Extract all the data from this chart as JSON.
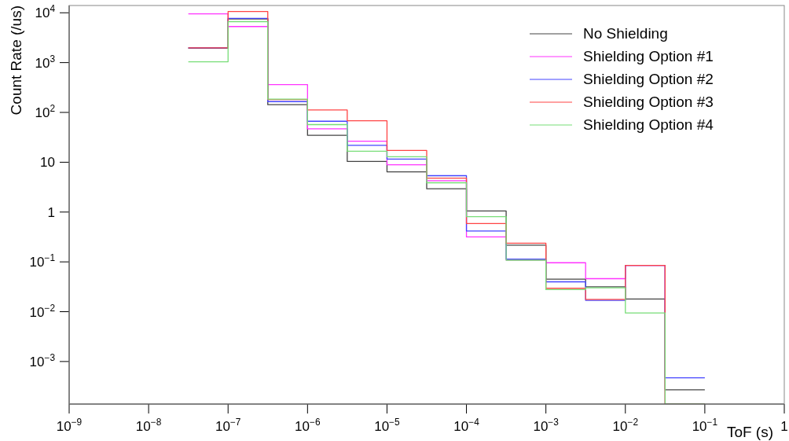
{
  "chart_data": {
    "type": "histogram",
    "xlabel": "ToF (s)",
    "ylabel": "Count Rate (/us)",
    "log": "xy",
    "legend": "top right",
    "grid": false,
    "bins": [
      3.16e-08,
      1e-07,
      3.16e-07,
      1e-06,
      3.16e-06,
      1e-05,
      3.16e-05,
      0.0001,
      0.000316,
      0.001,
      0.00316,
      0.01,
      0.0316,
      0.1
    ],
    "xlim": [
      1e-09,
      1
    ],
    "ylim": [
      0.00014,
      14000
    ],
    "xticks": [
      {
        "value": 1e-09,
        "label": "10$^{−9}$"
      },
      {
        "value": 1e-08,
        "label": "10$^{−8}$"
      },
      {
        "value": 1e-07,
        "label": "10$^{−7}$"
      },
      {
        "value": 1e-06,
        "label": "10$^{−6}$"
      },
      {
        "value": 1e-05,
        "label": "10$^{−5}$"
      },
      {
        "value": 0.0001,
        "label": "10$^{−4}$"
      },
      {
        "value": 0.001,
        "label": "10$^{−3}$"
      },
      {
        "value": 0.01,
        "label": "10$^{−2}$"
      },
      {
        "value": 0.1,
        "label": "10$^{−1}$"
      },
      1
    ],
    "yticks": [
      {
        "value": 0.001,
        "label": "10$^{−3}$"
      },
      {
        "value": 0.01,
        "label": "10$^{−2}$"
      },
      {
        "value": 0.1,
        "label": "10$^{−1}$"
      },
      1,
      10,
      {
        "value": 100,
        "label": "10$^{2}$"
      },
      {
        "value": 1000,
        "label": "10$^{3}$"
      },
      {
        "value": 10000,
        "label": "10$^{4}$"
      }
    ],
    "series": [
      {
        "name": "No Shielding",
        "color": "#444444",
        "values": [
          1950,
          7500,
          143,
          34.7,
          10.4,
          6.4,
          2.93,
          1.05,
          0.217,
          0.045,
          0.0316,
          0.018,
          0.00027
        ]
      },
      {
        "name": "Shielding Option #1",
        "color": "#ff33ff",
        "values": [
          9500,
          5300,
          363,
          46.8,
          26.5,
          8.9,
          4.27,
          0.316,
          0.109,
          0.096,
          0.046,
          0.085,
          null
        ]
      },
      {
        "name": "Shielding Option #2",
        "color": "#4444ff",
        "values": [
          1970,
          7750,
          165,
          66.5,
          21.9,
          11.6,
          5.37,
          0.417,
          0.114,
          0.0398,
          0.0169,
          0.085,
          0.00047
        ]
      },
      {
        "name": "Shielding Option #3",
        "color": "#ff4444",
        "values": [
          1970,
          10600,
          182,
          112,
          68,
          17.2,
          4.8,
          0.59,
          0.237,
          0.0295,
          0.0176,
          0.085,
          null
        ]
      },
      {
        "name": "Shielding Option #4",
        "color": "#77dd77",
        "values": [
          1040,
          6650,
          185,
          57,
          16.6,
          12.9,
          3.87,
          0.81,
          0.108,
          0.0277,
          0.0302,
          0.0094,
          null
        ]
      }
    ]
  }
}
